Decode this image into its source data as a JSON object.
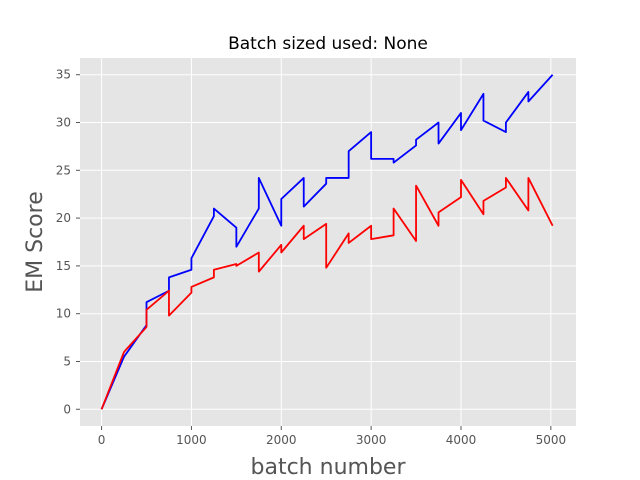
{
  "chart_data": {
    "type": "line",
    "title": "Batch sized used: None",
    "xlabel": "batch number",
    "ylabel": "EM Score",
    "xlim": [
      -240,
      5280
    ],
    "ylim": [
      -1.75,
      36.75
    ],
    "x_ticks": [
      0,
      1000,
      2000,
      3000,
      4000,
      5000
    ],
    "y_ticks": [
      0,
      5,
      10,
      15,
      20,
      25,
      30,
      35
    ],
    "grid": true,
    "series": [
      {
        "color": "#0000ff",
        "x": [
          0,
          250,
          500,
          500,
          750,
          750,
          1000,
          1000,
          1250,
          1250,
          1500,
          1500,
          1750,
          1750,
          2000,
          2000,
          2250,
          2250,
          2500,
          2500,
          2750,
          2750,
          3000,
          3000,
          3250,
          3250,
          3500,
          3500,
          3750,
          3750,
          4000,
          4000,
          4250,
          4250,
          4500,
          4500,
          4750,
          4750,
          5020
        ],
        "y": [
          0,
          5.5,
          8.8,
          11.2,
          12.4,
          13.8,
          14.6,
          15.8,
          20.2,
          21.0,
          19.0,
          17.0,
          21.0,
          24.2,
          19.2,
          22.0,
          24.2,
          21.2,
          23.6,
          24.2,
          24.2,
          27.0,
          29.0,
          26.2,
          26.2,
          25.8,
          27.6,
          28.2,
          30.0,
          27.8,
          31.0,
          29.2,
          33.0,
          30.2,
          29.0,
          30.0,
          33.2,
          32.2,
          35.0
        ]
      },
      {
        "color": "#ff0000",
        "x": [
          0,
          250,
          500,
          500,
          750,
          750,
          1000,
          1000,
          1250,
          1250,
          1500,
          1500,
          1750,
          1750,
          2000,
          2000,
          2250,
          2250,
          2500,
          2500,
          2750,
          2750,
          3000,
          3000,
          3250,
          3250,
          3500,
          3500,
          3750,
          3750,
          4000,
          4000,
          4250,
          4250,
          4500,
          4500,
          4750,
          4750,
          5020
        ],
        "y": [
          0,
          6.0,
          8.6,
          10.4,
          12.4,
          9.8,
          12.2,
          12.8,
          13.8,
          14.6,
          15.2,
          15.0,
          16.4,
          14.4,
          17.2,
          16.4,
          19.2,
          17.8,
          19.4,
          14.8,
          18.4,
          17.4,
          19.2,
          17.8,
          18.2,
          21.0,
          17.6,
          23.4,
          19.2,
          20.6,
          22.2,
          24.0,
          20.4,
          21.8,
          23.2,
          24.2,
          20.8,
          24.2,
          19.2
        ]
      }
    ]
  }
}
